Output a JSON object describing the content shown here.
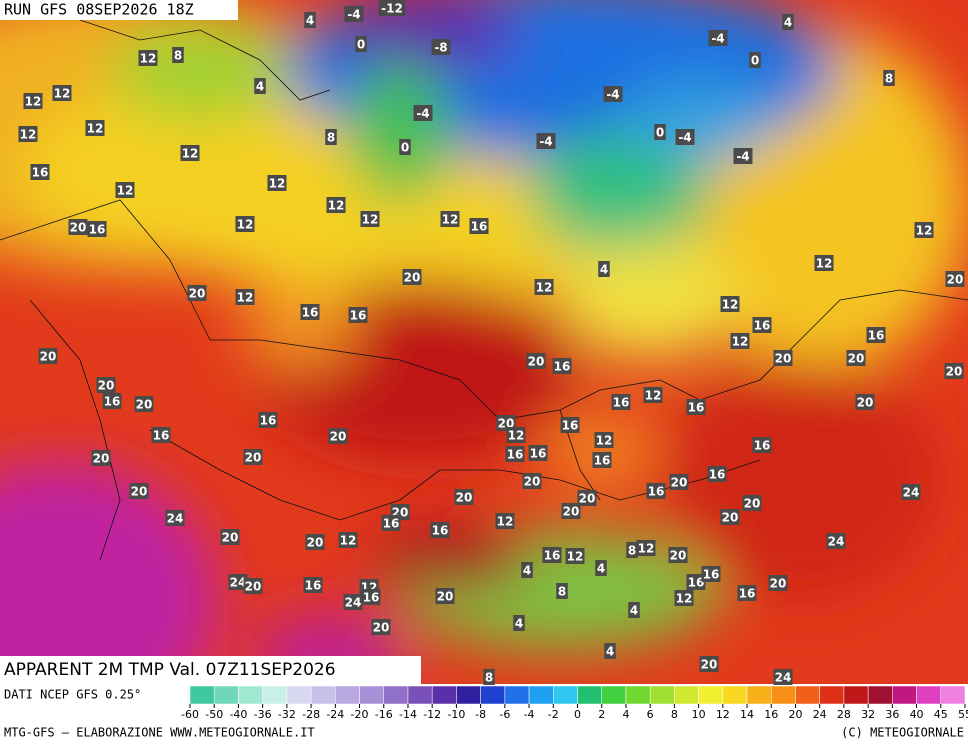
{
  "header": {
    "run": "RUN GFS 08SEP2026 18Z"
  },
  "map": {
    "title": "APPARENT 2M TMP Val. 07Z11SEP2026",
    "labels": [
      4,
      -4,
      -12,
      0,
      -8,
      -4,
      4,
      0,
      12,
      8,
      4,
      12,
      12,
      12,
      12,
      8,
      -4,
      0,
      -4,
      -4,
      0,
      -4,
      -4,
      8,
      12,
      16,
      12,
      12,
      12,
      12,
      12,
      16,
      12,
      20,
      16,
      20,
      12,
      4,
      12,
      12,
      20,
      20,
      12,
      16,
      16,
      20,
      20,
      16,
      12,
      16,
      12,
      20,
      16,
      20,
      20,
      20,
      16,
      20,
      16,
      20,
      16,
      20,
      20,
      20,
      12,
      16,
      16,
      16,
      12,
      16,
      16,
      12,
      16,
      16,
      20,
      20,
      24,
      20,
      20,
      12,
      20,
      20,
      20,
      20,
      16,
      20,
      16,
      20,
      20,
      24,
      24,
      20,
      16,
      16,
      12,
      16,
      12,
      8,
      12,
      20,
      24,
      20,
      16,
      12,
      16,
      24,
      20,
      4,
      4,
      8,
      16,
      16,
      12,
      16,
      20,
      20,
      4,
      4,
      4,
      20,
      24,
      8
    ]
  },
  "legend": {
    "source": "DATI NCEP GFS 0.25°",
    "ticks": [
      -60,
      -50,
      -40,
      -36,
      -32,
      -28,
      -24,
      -20,
      -16,
      -14,
      -12,
      -10,
      -8,
      -6,
      -4,
      -2,
      0,
      2,
      4,
      6,
      8,
      10,
      12,
      14,
      16,
      20,
      24,
      28,
      32,
      36,
      40,
      45,
      55
    ]
  },
  "footer": {
    "left": "MTG-GFS — ELABORAZIONE WWW.METEOGIORNALE.IT",
    "right": "(C) METEOGIORNALE"
  }
}
